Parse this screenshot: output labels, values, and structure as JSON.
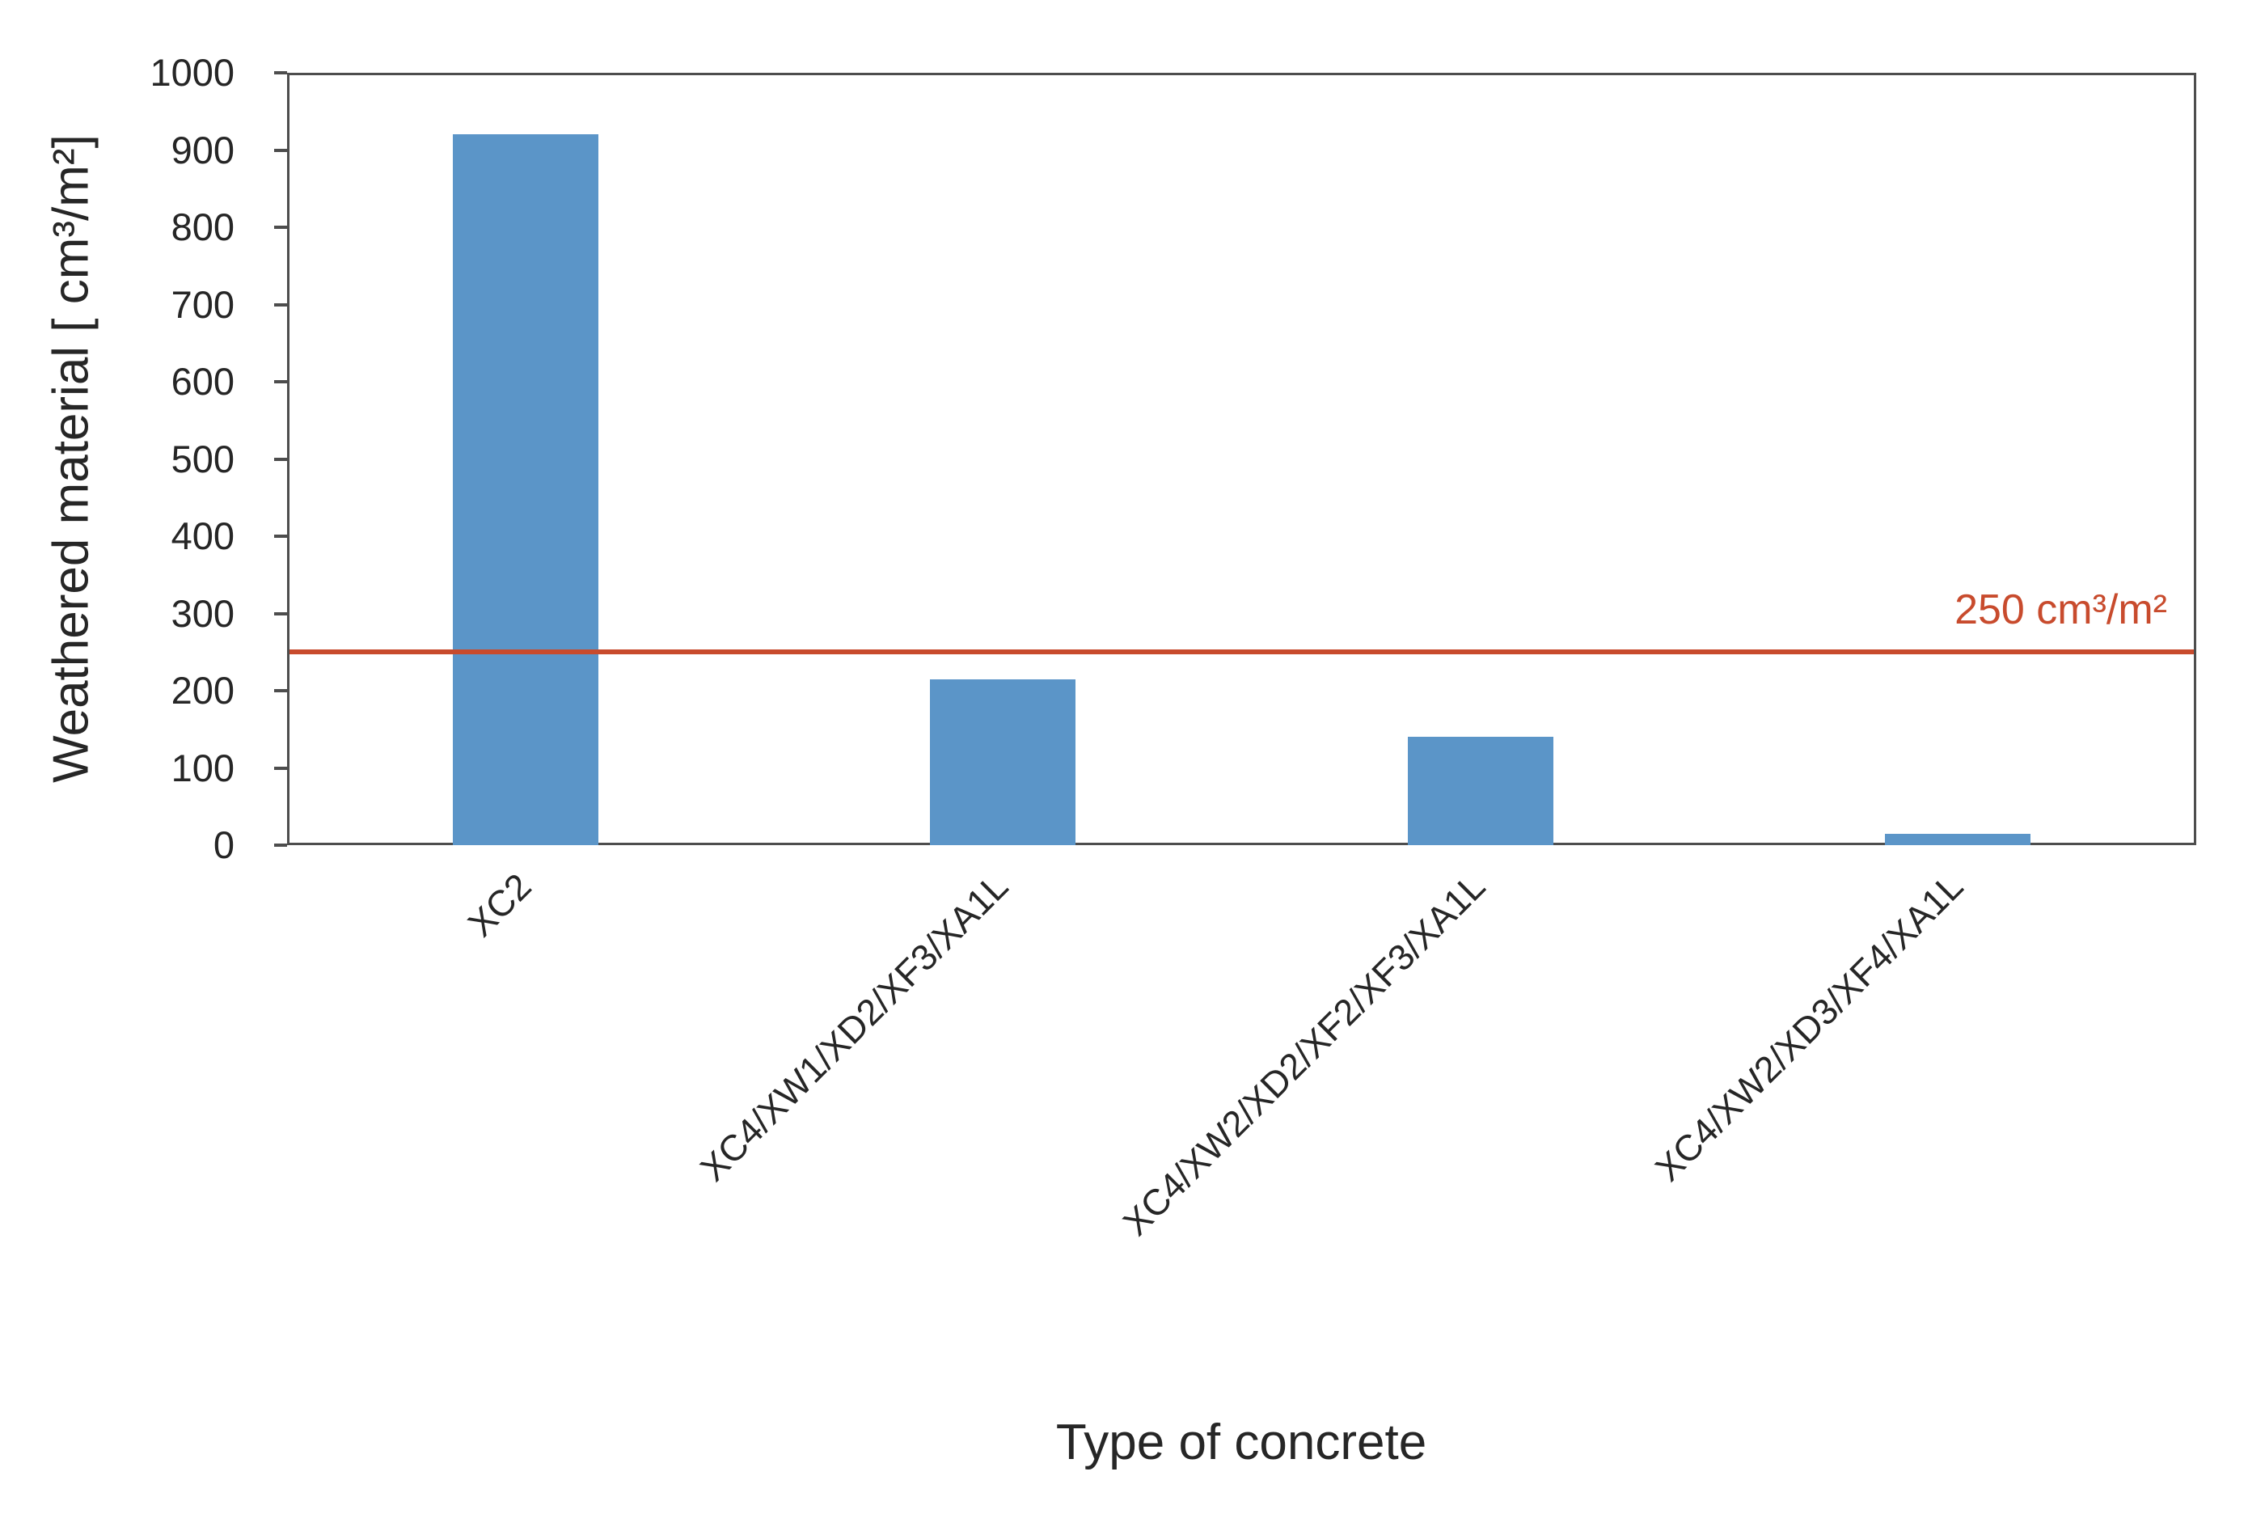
{
  "chart_data": {
    "type": "bar",
    "title": "",
    "categories": [
      "XC2",
      "XC4/XW1/XD2/XF3/XA1L",
      "XC4/XW2/XD2/XF2/XF3/XA1L",
      "XC4/XW2/XD3/XF4/XA1L"
    ],
    "values": [
      920,
      215,
      140,
      15
    ],
    "xlabel": "Type of concrete",
    "ylabel": "Weathered material [ cm³/m²]",
    "ylim": [
      0,
      1000
    ],
    "ytick_step": 100,
    "grid": false,
    "legend": "none",
    "bar_color": "#5B95C8",
    "axis_color": "#4D4D4D",
    "text_color": "#262626",
    "reference_line": {
      "value": 250,
      "label": "250 cm³/m²",
      "color": "#C84B2D"
    }
  }
}
